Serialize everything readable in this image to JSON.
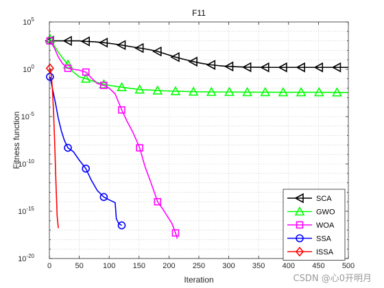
{
  "chart_data": {
    "type": "line",
    "title": "F11",
    "xlabel": "Iteration",
    "ylabel": "Fitness function",
    "xlim": [
      0,
      500
    ],
    "ylim_log10": [
      -20,
      5
    ],
    "yscale": "log",
    "grid": true,
    "legend_position": "bottom-right",
    "x_ticks": [
      "0",
      "50",
      "100",
      "150",
      "200",
      "250",
      "300",
      "350",
      "400",
      "450",
      "500"
    ],
    "y_ticks": [
      {
        "base": "10",
        "exp": "-20",
        "value": -20
      },
      {
        "base": "10",
        "exp": "-15",
        "value": -15
      },
      {
        "base": "10",
        "exp": "-10",
        "value": -10
      },
      {
        "base": "10",
        "exp": "-5",
        "value": -5
      },
      {
        "base": "10",
        "exp": "0",
        "value": 0
      },
      {
        "base": "10",
        "exp": "5",
        "value": 5
      }
    ],
    "series": [
      {
        "name": "SCA",
        "color": "#000000",
        "marker": "triangle-left",
        "points": [
          [
            1,
            3.0
          ],
          [
            10,
            3.0
          ],
          [
            20,
            3.0
          ],
          [
            30,
            3.0
          ],
          [
            40,
            3.0
          ],
          [
            50,
            3.0
          ],
          [
            60,
            2.95
          ],
          [
            75,
            2.9
          ],
          [
            90,
            2.82
          ],
          [
            105,
            2.7
          ],
          [
            120,
            2.57
          ],
          [
            135,
            2.4
          ],
          [
            150,
            2.25
          ],
          [
            165,
            2.1
          ],
          [
            180,
            1.9
          ],
          [
            195,
            1.6
          ],
          [
            210,
            1.3
          ],
          [
            225,
            1.05
          ],
          [
            240,
            0.82
          ],
          [
            255,
            0.62
          ],
          [
            270,
            0.47
          ],
          [
            285,
            0.37
          ],
          [
            300,
            0.3
          ],
          [
            315,
            0.26
          ],
          [
            330,
            0.22
          ],
          [
            345,
            0.21
          ],
          [
            360,
            0.2
          ],
          [
            375,
            0.2
          ],
          [
            390,
            0.2
          ],
          [
            405,
            0.2
          ],
          [
            420,
            0.2
          ],
          [
            435,
            0.2
          ],
          [
            450,
            0.2
          ],
          [
            465,
            0.2
          ],
          [
            480,
            0.2
          ],
          [
            500,
            0.2
          ]
        ],
        "marker_x": [
          1,
          31,
          61,
          91,
          121,
          151,
          181,
          211,
          241,
          271,
          301,
          331,
          361,
          391,
          421,
          451,
          481
        ]
      },
      {
        "name": "GWO",
        "color": "#00ff00",
        "marker": "triangle-up",
        "points": [
          [
            1,
            3.2
          ],
          [
            8,
            2.5
          ],
          [
            15,
            1.8
          ],
          [
            22,
            1.2
          ],
          [
            31,
            0.5
          ],
          [
            40,
            -0.3
          ],
          [
            50,
            -0.8
          ],
          [
            61,
            -1.0
          ],
          [
            75,
            -1.3
          ],
          [
            91,
            -1.6
          ],
          [
            105,
            -1.75
          ],
          [
            121,
            -1.9
          ],
          [
            140,
            -2.05
          ],
          [
            151,
            -2.15
          ],
          [
            170,
            -2.2
          ],
          [
            181,
            -2.25
          ],
          [
            200,
            -2.3
          ],
          [
            211,
            -2.32
          ],
          [
            230,
            -2.35
          ],
          [
            241,
            -2.37
          ],
          [
            271,
            -2.4
          ],
          [
            301,
            -2.4
          ],
          [
            331,
            -2.42
          ],
          [
            361,
            -2.42
          ],
          [
            391,
            -2.43
          ],
          [
            421,
            -2.43
          ],
          [
            451,
            -2.43
          ],
          [
            481,
            -2.45
          ],
          [
            500,
            -2.45
          ]
        ],
        "marker_x": [
          1,
          31,
          61,
          91,
          121,
          151,
          181,
          211,
          241,
          271,
          301,
          331,
          361,
          391,
          421,
          451,
          481
        ]
      },
      {
        "name": "WOA",
        "color": "#ff00ff",
        "marker": "square",
        "points": [
          [
            1,
            3.0
          ],
          [
            8,
            2.3
          ],
          [
            15,
            1.3
          ],
          [
            22,
            0.6
          ],
          [
            31,
            0.1
          ],
          [
            40,
            0.0
          ],
          [
            50,
            -0.1
          ],
          [
            55,
            -0.2
          ],
          [
            61,
            -0.3
          ],
          [
            70,
            -0.9
          ],
          [
            80,
            -1.5
          ],
          [
            91,
            -1.7
          ],
          [
            100,
            -2.0
          ],
          [
            110,
            -2.6
          ],
          [
            121,
            -4.3
          ],
          [
            130,
            -5.5
          ],
          [
            140,
            -6.7
          ],
          [
            151,
            -8.3
          ],
          [
            160,
            -10.3
          ],
          [
            170,
            -12.0
          ],
          [
            181,
            -14.0
          ],
          [
            190,
            -14.8
          ],
          [
            200,
            -15.8
          ],
          [
            205,
            -16.3
          ],
          [
            211,
            -17.3
          ],
          [
            214,
            -17.9
          ]
        ],
        "marker_x": [
          1,
          31,
          61,
          91,
          121,
          151,
          181,
          211
        ]
      },
      {
        "name": "SSA",
        "color": "#0000ff",
        "marker": "circle",
        "points": [
          [
            1,
            -0.8
          ],
          [
            5,
            -2.0
          ],
          [
            10,
            -3.5
          ],
          [
            15,
            -5.2
          ],
          [
            20,
            -6.5
          ],
          [
            25,
            -7.5
          ],
          [
            31,
            -8.3
          ],
          [
            40,
            -8.7
          ],
          [
            50,
            -9.6
          ],
          [
            61,
            -10.5
          ],
          [
            70,
            -11.7
          ],
          [
            80,
            -12.8
          ],
          [
            91,
            -13.5
          ],
          [
            100,
            -13.8
          ],
          [
            110,
            -14.1
          ],
          [
            112,
            -15.8
          ],
          [
            116,
            -16.3
          ],
          [
            121,
            -16.5
          ]
        ],
        "marker_x": [
          1,
          31,
          61,
          91,
          121
        ]
      },
      {
        "name": "ISSA",
        "color": "#ff0000",
        "marker": "diamond",
        "points": [
          [
            1,
            0.1
          ],
          [
            3,
            -0.5
          ],
          [
            5,
            -2.0
          ],
          [
            7,
            -4.5
          ],
          [
            9,
            -8.0
          ],
          [
            11,
            -12.0
          ],
          [
            13,
            -15.5
          ],
          [
            15,
            -16.8
          ]
        ],
        "marker_x": [
          1
        ]
      }
    ]
  },
  "watermark": "CSDN @心0开明月"
}
